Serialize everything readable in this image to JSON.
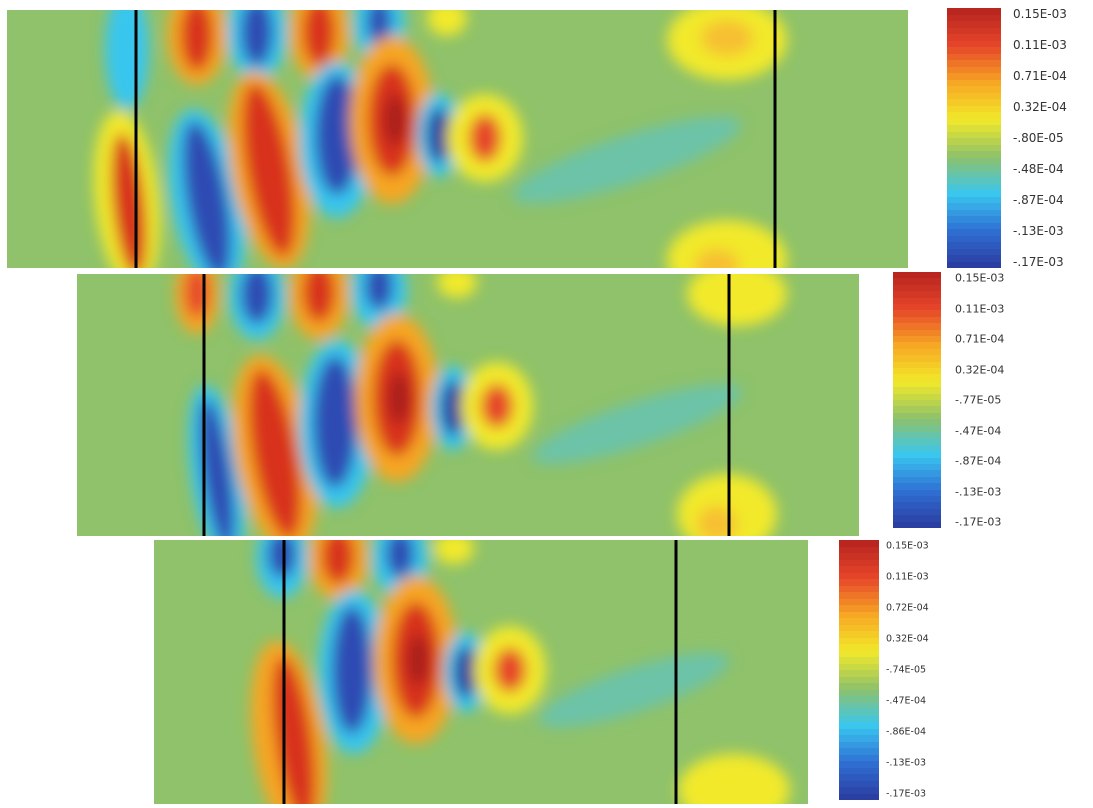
{
  "chart_data": [
    {
      "type": "heatmap",
      "colorbar": {
        "min": -0.00017,
        "max": 0.00015,
        "tick_labels": [
          "0.15E-03",
          "0.11E-03",
          "0.71E-04",
          "0.32E-04",
          "-.80E-05",
          "-.48E-04",
          "-.87E-04",
          "-.13E-03",
          "-.17E-03"
        ]
      },
      "colormap": [
        "#2b3a9e",
        "#2f6fd3",
        "#39c6ef",
        "#8fc26a",
        "#f2e92a",
        "#f6a624",
        "#e6452a",
        "#b5231f"
      ]
    },
    {
      "type": "heatmap",
      "colorbar": {
        "min": -0.00017,
        "max": 0.00015,
        "tick_labels": [
          "0.15E-03",
          "0.11E-03",
          "0.71E-04",
          "0.32E-04",
          "-.77E-05",
          "-.47E-04",
          "-.87E-04",
          "-.13E-03",
          "-.17E-03"
        ]
      },
      "colormap": [
        "#2b3a9e",
        "#2f6fd3",
        "#39c6ef",
        "#8fc26a",
        "#f2e92a",
        "#f6a624",
        "#e6452a",
        "#b5231f"
      ]
    },
    {
      "type": "heatmap",
      "colorbar": {
        "min": -0.00017,
        "max": 0.00015,
        "tick_labels": [
          "0.15E-03",
          "0.11E-03",
          "0.72E-04",
          "0.32E-04",
          "-.74E-05",
          "-.47E-04",
          "-.86E-04",
          "-.13E-03",
          "-.17E-03"
        ]
      },
      "colormap": [
        "#2b3a9e",
        "#2f6fd3",
        "#39c6ef",
        "#8fc26a",
        "#f2e92a",
        "#f6a624",
        "#e6452a",
        "#b5231f"
      ]
    }
  ]
}
